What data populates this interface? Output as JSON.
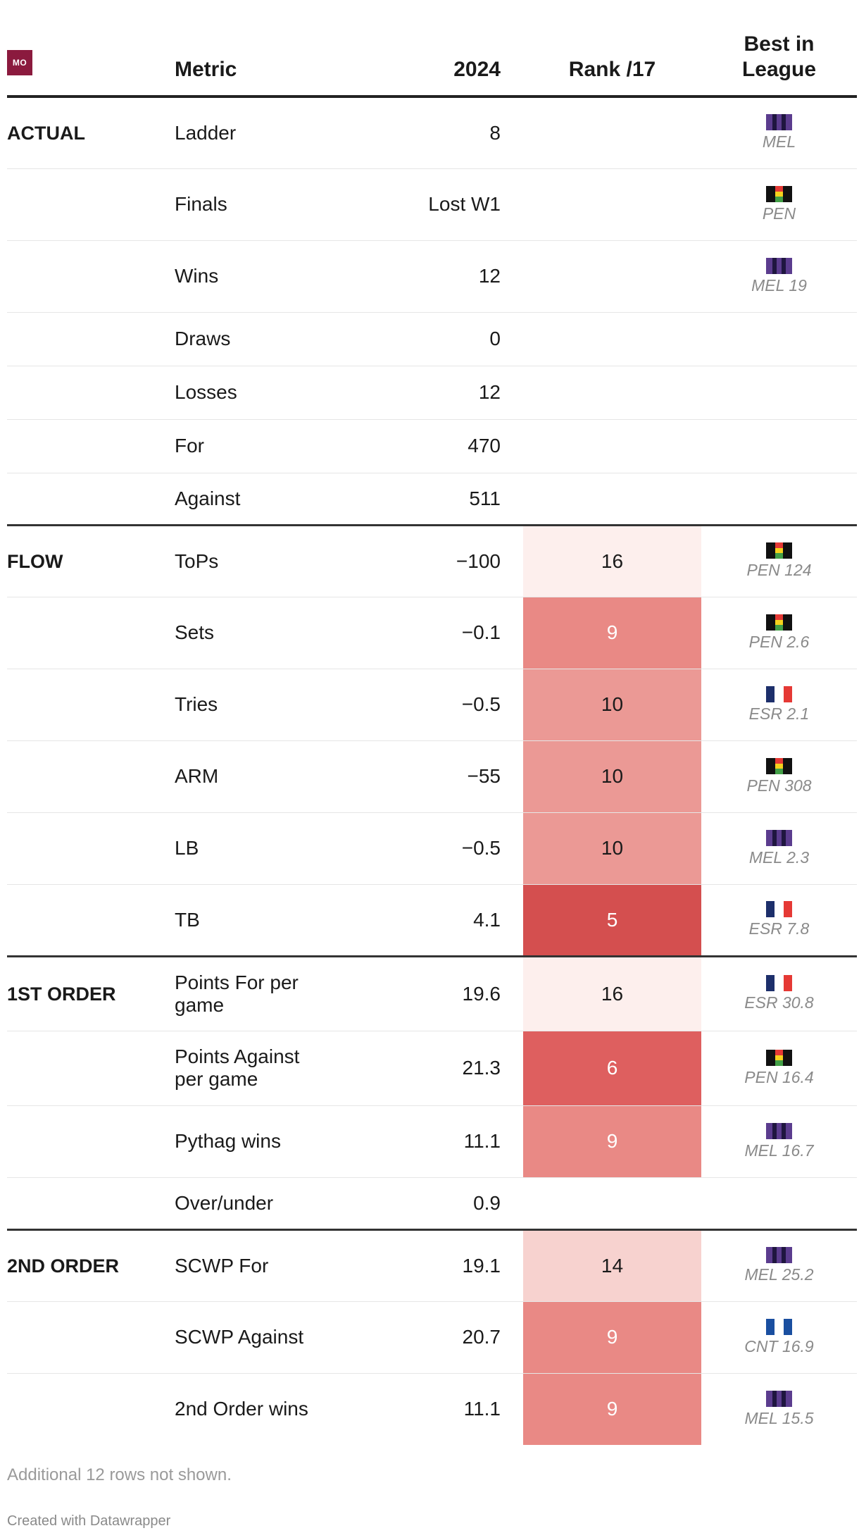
{
  "header": {
    "logo_text": "MO",
    "metric": "Metric",
    "year": "2024",
    "rank": "Rank /17",
    "best_line1": "Best in",
    "best_line2": "League"
  },
  "colors": {
    "logo": "#8b1a3e",
    "rank_scale": {
      "5": "#d44f4f",
      "6": "#de5f5f",
      "9": "#e98985",
      "10": "#eb9995",
      "14": "#f7d2cf",
      "16": "#fdefed"
    }
  },
  "rows": [
    {
      "group": "ACTUAL",
      "metric": "Ladder",
      "value": "8",
      "rank": "",
      "best_team": "MEL",
      "best_text": "MEL"
    },
    {
      "group": "",
      "metric": "Finals",
      "value": "Lost W1",
      "rank": "",
      "best_team": "PEN",
      "best_text": "PEN"
    },
    {
      "group": "",
      "metric": "Wins",
      "value": "12",
      "rank": "",
      "best_team": "MEL",
      "best_text": "MEL 19"
    },
    {
      "group": "",
      "metric": "Draws",
      "value": "0",
      "rank": "",
      "best_team": "",
      "best_text": ""
    },
    {
      "group": "",
      "metric": "Losses",
      "value": "12",
      "rank": "",
      "best_team": "",
      "best_text": ""
    },
    {
      "group": "",
      "metric": "For",
      "value": "470",
      "rank": "",
      "best_team": "",
      "best_text": ""
    },
    {
      "group": "",
      "metric": "Against",
      "value": "511",
      "rank": "",
      "best_team": "",
      "best_text": ""
    },
    {
      "group": "FLOW",
      "metric": "ToPs",
      "value": "−100",
      "rank": "16",
      "best_team": "PEN",
      "best_text": "PEN 124"
    },
    {
      "group": "",
      "metric": "Sets",
      "value": "−0.1",
      "rank": "9",
      "best_team": "PEN",
      "best_text": "PEN 2.6"
    },
    {
      "group": "",
      "metric": "Tries",
      "value": "−0.5",
      "rank": "10",
      "best_team": "ESR",
      "best_text": "ESR 2.1"
    },
    {
      "group": "",
      "metric": "ARM",
      "value": "−55",
      "rank": "10",
      "best_team": "PEN",
      "best_text": "PEN 308"
    },
    {
      "group": "",
      "metric": "LB",
      "value": "−0.5",
      "rank": "10",
      "best_team": "MEL",
      "best_text": "MEL 2.3"
    },
    {
      "group": "",
      "metric": "TB",
      "value": "4.1",
      "rank": "5",
      "best_team": "ESR",
      "best_text": "ESR 7.8"
    },
    {
      "group": "1ST ORDER",
      "metric": "Points For per game",
      "value": "19.6",
      "rank": "16",
      "best_team": "ESR",
      "best_text": "ESR 30.8"
    },
    {
      "group": "",
      "metric": "Points Against per game",
      "value": "21.3",
      "rank": "6",
      "best_team": "PEN",
      "best_text": "PEN 16.4"
    },
    {
      "group": "",
      "metric": "Pythag wins",
      "value": "11.1",
      "rank": "9",
      "best_team": "MEL",
      "best_text": "MEL 16.7"
    },
    {
      "group": "",
      "metric": "Over/under",
      "value": "0.9",
      "rank": "",
      "best_team": "",
      "best_text": ""
    },
    {
      "group": "2ND ORDER",
      "metric": "SCWP For",
      "value": "19.1",
      "rank": "14",
      "best_team": "MEL",
      "best_text": "MEL 25.2"
    },
    {
      "group": "",
      "metric": "SCWP Against",
      "value": "20.7",
      "rank": "9",
      "best_team": "CNT",
      "best_text": "CNT 16.9"
    },
    {
      "group": "",
      "metric": "2nd Order wins",
      "value": "11.1",
      "rank": "9",
      "best_team": "MEL",
      "best_text": "MEL 15.5"
    }
  ],
  "footer": {
    "note": "Additional 12 rows not shown.",
    "credit": "Created with Datawrapper"
  }
}
